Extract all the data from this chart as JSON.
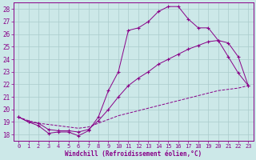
{
  "xlabel": "Windchill (Refroidissement éolien,°C)",
  "xlim": [
    -0.5,
    23.5
  ],
  "ylim": [
    17.5,
    28.5
  ],
  "xticks": [
    0,
    1,
    2,
    3,
    4,
    5,
    6,
    7,
    8,
    9,
    10,
    11,
    12,
    13,
    14,
    15,
    16,
    17,
    18,
    19,
    20,
    21,
    22,
    23
  ],
  "yticks": [
    18,
    19,
    20,
    21,
    22,
    23,
    24,
    25,
    26,
    27,
    28
  ],
  "background_color": "#cce8e8",
  "grid_color": "#aacccc",
  "line_color": "#880088",
  "line1_x": [
    0,
    1,
    2,
    3,
    4,
    5,
    6,
    7,
    8,
    9,
    10,
    11,
    12,
    13,
    14,
    15,
    16,
    17,
    18,
    19,
    20,
    21,
    22,
    23
  ],
  "line1_y": [
    19.4,
    19.0,
    18.7,
    18.1,
    18.2,
    18.2,
    17.9,
    18.3,
    19.4,
    21.5,
    23.0,
    26.3,
    26.5,
    27.0,
    27.8,
    28.2,
    28.2,
    27.2,
    26.5,
    26.5,
    25.5,
    24.2,
    22.9,
    21.9
  ],
  "line2_x": [
    0,
    1,
    2,
    3,
    4,
    5,
    6,
    7,
    8,
    9,
    10,
    11,
    12,
    13,
    14,
    15,
    16,
    17,
    18,
    19,
    20,
    21,
    22,
    23
  ],
  "line2_y": [
    19.4,
    19.0,
    18.9,
    18.4,
    18.3,
    18.3,
    18.2,
    18.4,
    19.1,
    20.0,
    21.0,
    21.9,
    22.5,
    23.0,
    23.6,
    24.0,
    24.4,
    24.8,
    25.1,
    25.4,
    25.5,
    25.3,
    24.2,
    21.9
  ],
  "line3_x": [
    0,
    1,
    2,
    3,
    4,
    5,
    6,
    7,
    8,
    9,
    10,
    11,
    12,
    13,
    14,
    15,
    16,
    17,
    18,
    19,
    20,
    21,
    22,
    23
  ],
  "line3_y": [
    19.4,
    19.1,
    18.9,
    18.8,
    18.7,
    18.6,
    18.5,
    18.6,
    18.9,
    19.2,
    19.5,
    19.7,
    19.9,
    20.1,
    20.3,
    20.5,
    20.7,
    20.9,
    21.1,
    21.3,
    21.5,
    21.6,
    21.7,
    21.9
  ]
}
